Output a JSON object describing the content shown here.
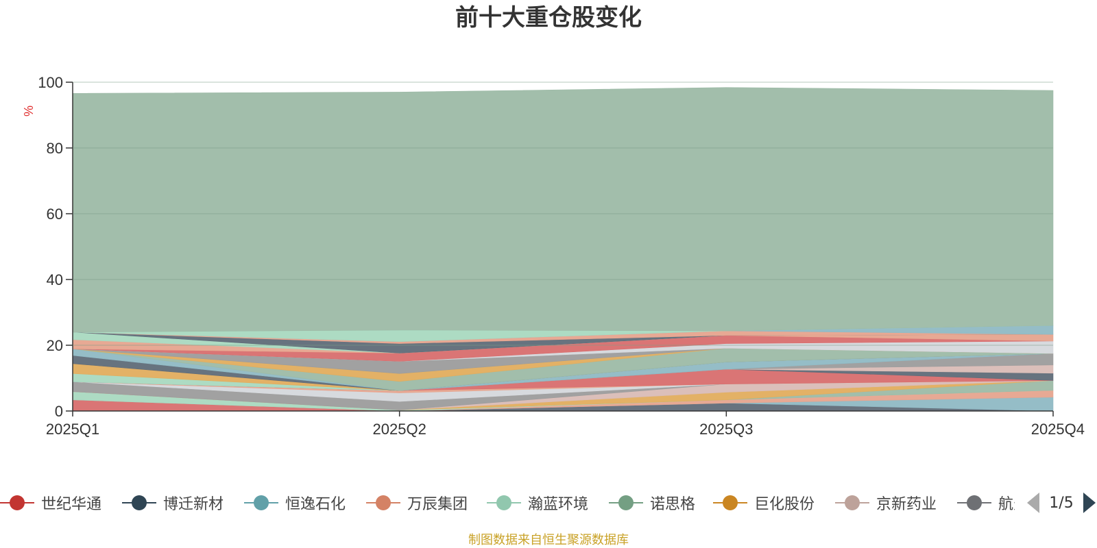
{
  "chart_data": {
    "type": "area",
    "stacked": true,
    "title": "前十大重仓股变化",
    "ylabel": "%",
    "xlabel": "",
    "x": [
      "2025Q1",
      "2025Q2",
      "2025Q3",
      "2025Q4"
    ],
    "yticks": [
      0,
      20,
      40,
      60,
      80,
      100
    ],
    "ylim": [
      0,
      100
    ],
    "grid": true,
    "legend_position": "bottom",
    "series": [
      {
        "name": "世纪华通",
        "color": "#d86e6e",
        "values": [
          3.4,
          0.0,
          0.0,
          0.0
        ]
      },
      {
        "name": "博迁新材",
        "color": "#5f6b78",
        "values": [
          0.0,
          0.0,
          2.4,
          0.0
        ]
      },
      {
        "name": "恒逸石化",
        "color": "#8fb9c4",
        "values": [
          0.0,
          0.0,
          0.0,
          4.2
        ]
      },
      {
        "name": "万辰集团",
        "color": "#e6a48e",
        "values": [
          0.0,
          0.0,
          1.0,
          2.1
        ]
      },
      {
        "name": "瀚蓝环境",
        "color": "#a9d9c0",
        "values": [
          2.5,
          0.3,
          0.0,
          0.0
        ]
      },
      {
        "name": "诺思格",
        "color": "#9dbba7",
        "values": [
          0.0,
          0.0,
          0.0,
          3.0
        ]
      },
      {
        "name": "巨化股份",
        "color": "#e1ad5e",
        "values": [
          0.0,
          0.0,
          2.3,
          0.0
        ]
      },
      {
        "name": "京新药业",
        "color": "#d9bcb6",
        "values": [
          0.0,
          0.0,
          2.5,
          0.0
        ]
      },
      {
        "name": "航天电器",
        "color": "#9c9c9c",
        "values": [
          3.0,
          2.6,
          0.0,
          0.0
        ]
      },
      {
        "name": "",
        "color": "#d5d8dc",
        "values": [
          0.0,
          2.6,
          0.0,
          0.0
        ]
      },
      {
        "name": "",
        "color": "#e6a48e",
        "values": [
          0.0,
          0.7,
          0.0,
          0.0
        ]
      },
      {
        "name": "",
        "color": "#d86e6e",
        "values": [
          0.0,
          0.0,
          4.5,
          0.0
        ]
      },
      {
        "name": "",
        "color": "#5f6b78",
        "values": [
          0.0,
          0.0,
          0.0,
          2.2
        ]
      },
      {
        "name": "",
        "color": "#d9bcb6",
        "values": [
          0.0,
          0.0,
          0.0,
          2.5
        ]
      },
      {
        "name": "",
        "color": "#9c9c9c",
        "values": [
          0.0,
          0.0,
          0.0,
          3.5
        ]
      },
      {
        "name": "",
        "color": "#8fb9c4",
        "values": [
          0.0,
          0.0,
          2.2,
          0.0
        ]
      },
      {
        "name": "",
        "color": "#a9d9c0",
        "values": [
          2.5,
          0.0,
          0.0,
          0.0
        ]
      },
      {
        "name": "",
        "color": "#e1ad5e",
        "values": [
          3.0,
          0.0,
          0.0,
          0.0
        ]
      },
      {
        "name": "",
        "color": "#5f6b78",
        "values": [
          2.5,
          0.0,
          0.0,
          0.0
        ]
      },
      {
        "name": "",
        "color": "#8fb9c4",
        "values": [
          2.0,
          0.0,
          0.0,
          0.0
        ]
      },
      {
        "name": "",
        "color": "#9dbba7",
        "values": [
          0.0,
          2.8,
          4.2,
          0.0
        ]
      },
      {
        "name": "",
        "color": "#e1ad5e",
        "values": [
          0.0,
          2.4,
          0.0,
          0.0
        ]
      },
      {
        "name": "",
        "color": "#9c9c9c",
        "values": [
          0.0,
          3.7,
          0.0,
          0.0
        ]
      },
      {
        "name": "",
        "color": "#d5d8dc",
        "values": [
          0.0,
          0.0,
          1.4,
          3.8
        ]
      },
      {
        "name": "",
        "color": "#d86e6e",
        "values": [
          0.0,
          2.5,
          2.5,
          0.0
        ]
      },
      {
        "name": "",
        "color": "#e6a48e",
        "values": [
          2.8,
          0.0,
          0.0,
          2.0
        ]
      },
      {
        "name": "",
        "color": "#a9d9c0",
        "values": [
          2.3,
          0.0,
          0.0,
          0.0
        ]
      },
      {
        "name": "",
        "color": "#5f6b78",
        "values": [
          0.0,
          2.9,
          0.0,
          0.0
        ]
      },
      {
        "name": "",
        "color": "#e6a48e",
        "values": [
          0.0,
          0.6,
          1.4,
          0.0
        ]
      },
      {
        "name": "",
        "color": "#8fb9c4",
        "values": [
          0.0,
          0.0,
          0.0,
          2.7
        ]
      },
      {
        "name": "",
        "color": "#a9d9c0",
        "values": [
          0.0,
          3.5,
          0.0,
          0.0
        ]
      },
      {
        "name": "",
        "color": "#9dbba7",
        "values": [
          72.6,
          72.4,
          74.0,
          71.5
        ]
      }
    ]
  },
  "legend": {
    "items": [
      {
        "label": "世纪华通",
        "color": "#c23531"
      },
      {
        "label": "博迁新材",
        "color": "#2f4554"
      },
      {
        "label": "恒逸石化",
        "color": "#61a0a8"
      },
      {
        "label": "万辰集团",
        "color": "#d48265"
      },
      {
        "label": "瀚蓝环境",
        "color": "#91c7ae"
      },
      {
        "label": "诺思格",
        "color": "#749f83"
      },
      {
        "label": "巨化股份",
        "color": "#ca8622"
      },
      {
        "label": "京新药业",
        "color": "#bda29a"
      },
      {
        "label": "航天电器",
        "color": "#6e7074"
      }
    ],
    "page_indicator": "1/5"
  },
  "colors": {
    "ylabel": "#e03030",
    "source": "#c9a227"
  },
  "source_note": "制图数据来自恒生聚源数据库"
}
